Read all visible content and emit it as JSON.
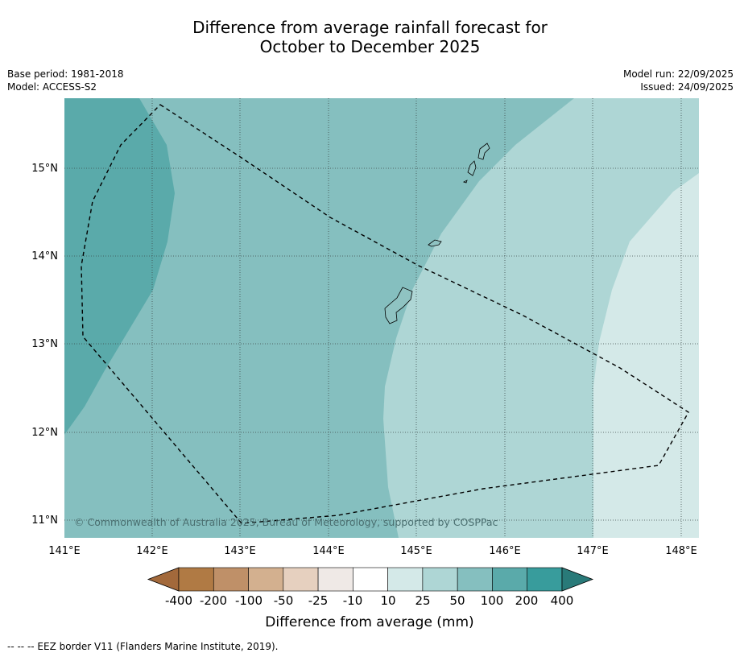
{
  "title": {
    "line1": "Difference from average rainfall forecast for",
    "line2": "October to December 2025"
  },
  "meta_left": {
    "base_period": "Base period: 1981-2018",
    "model": "Model: ACCESS-S2"
  },
  "meta_right": {
    "model_run": "Model run: 22/09/2025",
    "issued": "Issued: 24/09/2025"
  },
  "map": {
    "lon_range": [
      141.0,
      148.2
    ],
    "lat_range": [
      10.8,
      15.8
    ],
    "lon_ticks": [
      "141°E",
      "142°E",
      "143°E",
      "144°E",
      "145°E",
      "146°E",
      "147°E",
      "148°E"
    ],
    "lat_ticks": [
      "15°N",
      "14°N",
      "13°N",
      "12°N",
      "11°N"
    ],
    "copyright": "© Commonwealth of Australia 2025, Bureau of Meteorology, supported by COSPPac",
    "zones": [
      {
        "class": "100 to 200",
        "color": "#5aaaaa"
      },
      {
        "class": "50 to 100",
        "color": "#85bfbf"
      },
      {
        "class": "25 to 50",
        "color": "#aed6d5"
      },
      {
        "class": "10 to 25",
        "color": "#d4e9e8"
      }
    ],
    "eez_border": "dashed"
  },
  "colorbar": {
    "labels": [
      "-400",
      "-200",
      "-100",
      "-50",
      "-25",
      "-10",
      "10",
      "25",
      "50",
      "100",
      "200",
      "400"
    ],
    "colors": [
      "#a3693b",
      "#b07a44",
      "#bf9068",
      "#d3b08f",
      "#e6d0bf",
      "#efe9e6",
      "#ffffff",
      "#d4e9e8",
      "#aed6d5",
      "#85bfbf",
      "#5aaaaa",
      "#389c9c",
      "#297a79"
    ],
    "title": "Difference from average (mm)"
  },
  "footer": "--  --  -- EEZ border V11 (Flanders Marine Institute, 2019)."
}
